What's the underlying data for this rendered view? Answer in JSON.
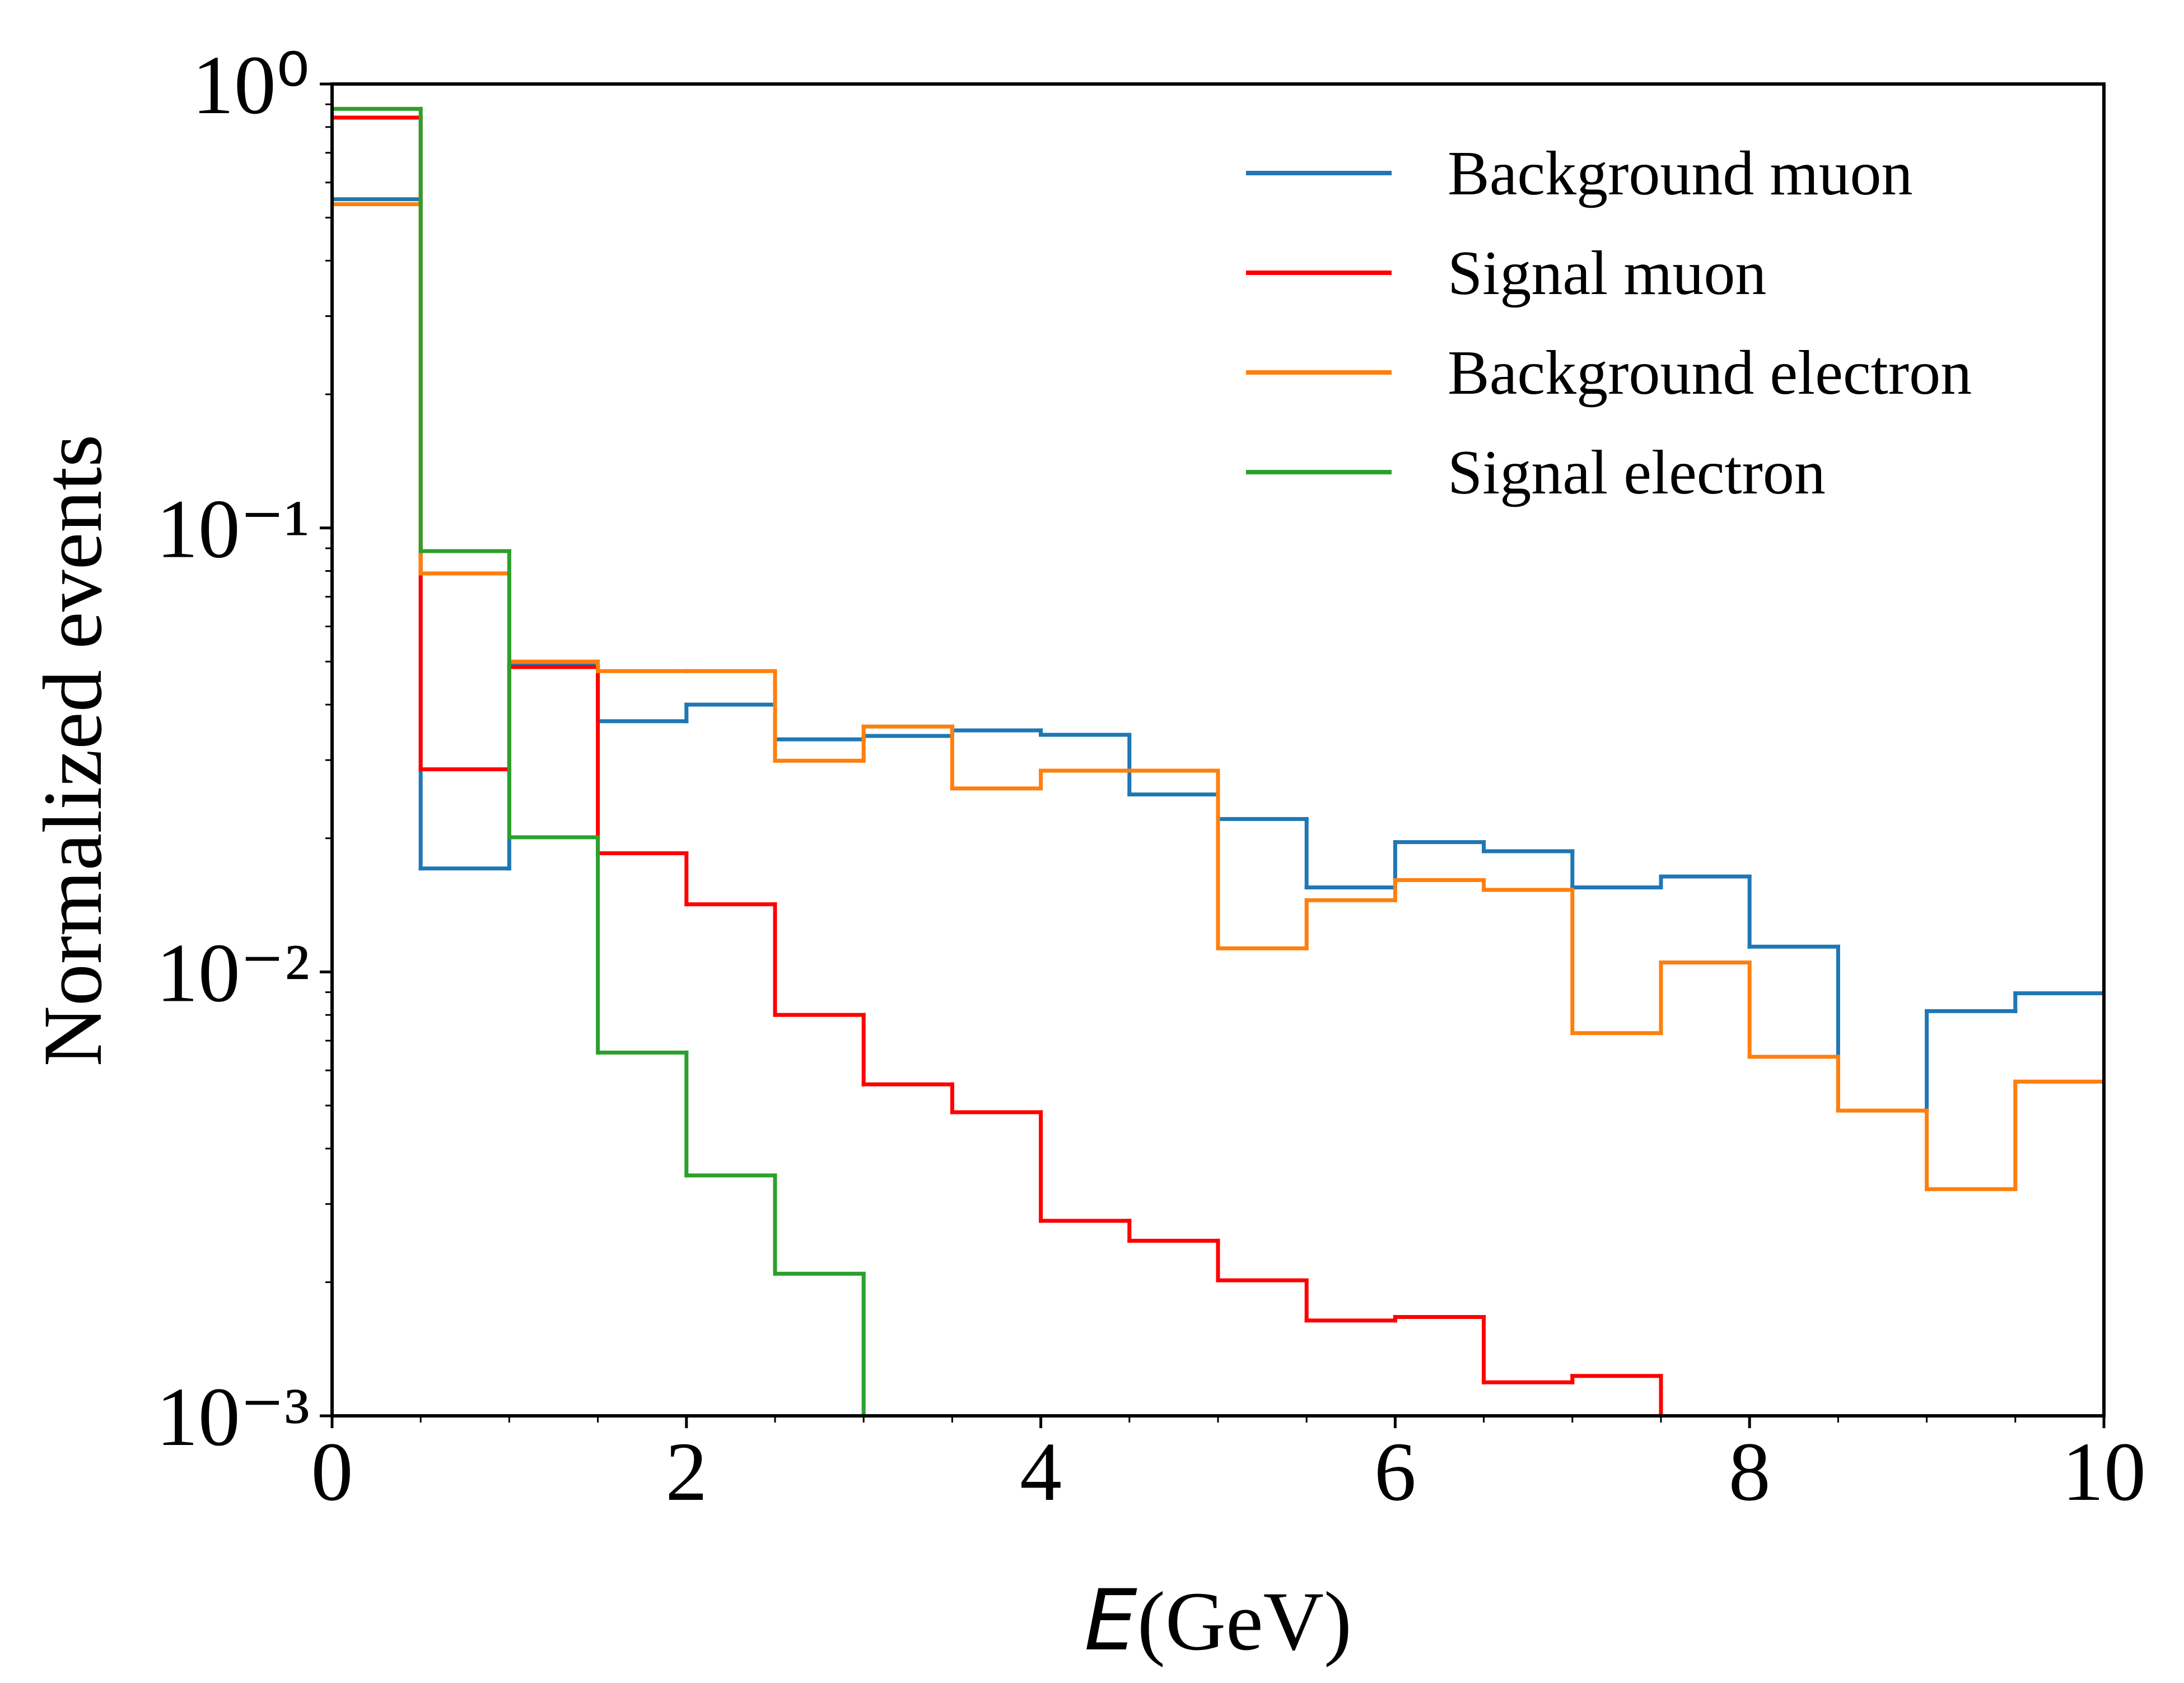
{
  "chart_data": {
    "type": "histogram",
    "xlabel": "E(GeV)",
    "ylabel": "Normalized events",
    "bins": [
      0,
      0.5,
      1,
      1.5,
      2,
      2.5,
      3,
      3.5,
      4,
      4.5,
      5,
      5.5,
      6,
      6.5,
      7,
      7.5,
      8,
      8.5,
      9,
      9.5,
      10
    ],
    "series": [
      {
        "name": "Background muon",
        "color": "#1f77b4",
        "values": [
          0.55,
          0.0171,
          0.049,
          0.0367,
          0.04,
          0.0334,
          0.034,
          0.035,
          0.0342,
          0.0251,
          0.0221,
          0.0155,
          0.0196,
          0.0187,
          0.0155,
          0.0164,
          0.0114,
          0.00487,
          0.00816,
          0.00895
        ]
      },
      {
        "name": "Signal muon",
        "color": "#ff0000",
        "values": [
          0.84,
          0.0286,
          0.0486,
          0.0185,
          0.0142,
          0.008,
          0.00558,
          0.00483,
          0.00275,
          0.00248,
          0.00202,
          0.00164,
          0.00167,
          0.00119,
          0.00123,
          null,
          null,
          null,
          null,
          null
        ]
      },
      {
        "name": "Background electron",
        "color": "#ff7f0e",
        "values": [
          0.536,
          0.079,
          0.05,
          0.0476,
          0.0476,
          0.0299,
          0.0357,
          0.0259,
          0.0284,
          0.0284,
          0.0113,
          0.0145,
          0.0161,
          0.0153,
          0.00728,
          0.0105,
          0.00644,
          0.00487,
          0.00324,
          0.00566
        ]
      },
      {
        "name": "Signal electron",
        "color": "#2ca02c",
        "values": [
          0.879,
          0.0887,
          0.0201,
          0.00658,
          0.00348,
          0.00209,
          null,
          null,
          null,
          null,
          null,
          null,
          null,
          null,
          null,
          null,
          null,
          null,
          null,
          null
        ]
      }
    ],
    "xlim": [
      0,
      10
    ],
    "xticks": [
      0,
      2,
      4,
      6,
      8,
      10
    ],
    "ylim": [
      0.001,
      1
    ],
    "yticks": [
      {
        "value": 0.001,
        "label": "10⁻³"
      },
      {
        "value": 0.01,
        "label": "10⁻²"
      },
      {
        "value": 0.1,
        "label": "10⁻¹"
      },
      {
        "value": 1,
        "label": "10⁰"
      }
    ],
    "yscale": "log",
    "legend": "upper right"
  }
}
